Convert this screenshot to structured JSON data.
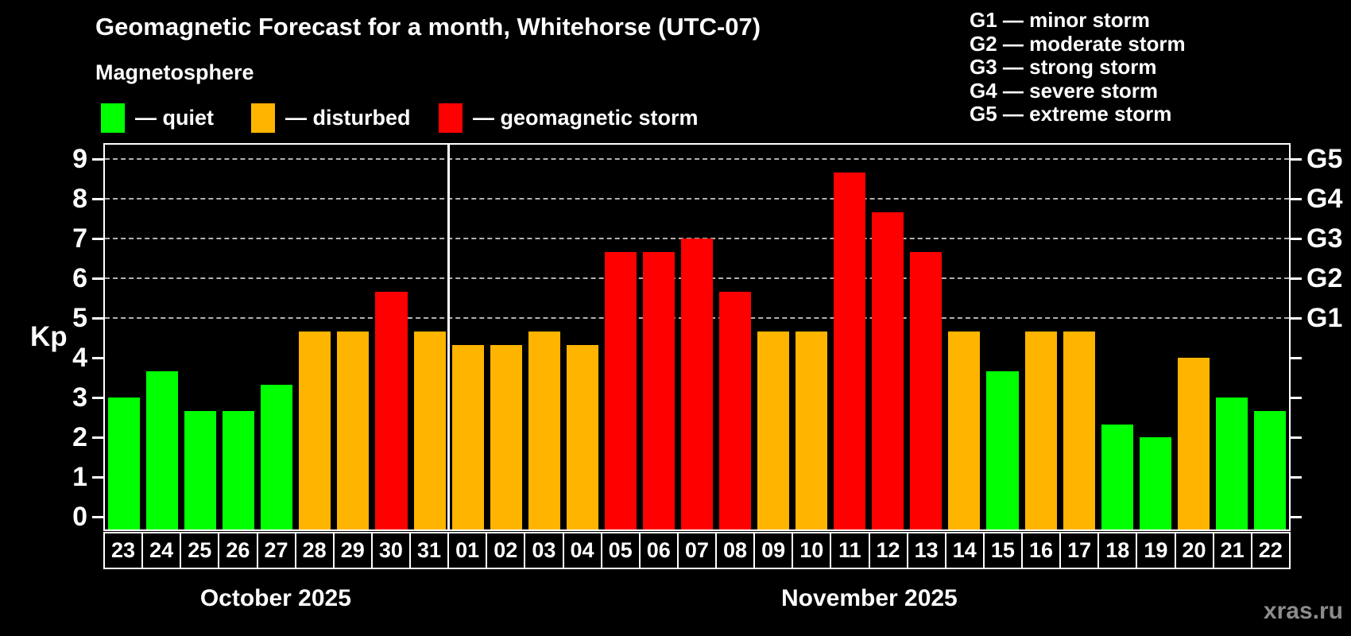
{
  "title": "Geomagnetic Forecast for a month, Whitehorse (UTC-07)",
  "subtitle": "Magnetosphere",
  "watermark": "xras.ru",
  "colors": {
    "quiet": "#00ff00",
    "disturbed": "#ffb400",
    "storm": "#ff0000",
    "background": "#000000",
    "grid": "#b2b2b2"
  },
  "legend": [
    {
      "key": "quiet",
      "label": "— quiet"
    },
    {
      "key": "disturbed",
      "label": "— disturbed"
    },
    {
      "key": "storm",
      "label": "— geomagnetic storm"
    }
  ],
  "g_scale_legend": [
    "G1 — minor storm",
    "G2 — moderate storm",
    "G3 — strong storm",
    "G4 — severe storm",
    "G5 — extreme storm"
  ],
  "chart_data": {
    "type": "bar",
    "ylabel": "Kp",
    "y_ticks": [
      0,
      1,
      2,
      3,
      4,
      5,
      6,
      7,
      8,
      9
    ],
    "ylim": [
      -0.32,
      9.36
    ],
    "grid_levels": [
      5,
      6,
      7,
      8,
      9
    ],
    "grid_style": "dashed",
    "legend_position": "top",
    "right_axis": [
      {
        "kp": 5,
        "label": "G1"
      },
      {
        "kp": 6,
        "label": "G2"
      },
      {
        "kp": 7,
        "label": "G3"
      },
      {
        "kp": 8,
        "label": "G4"
      },
      {
        "kp": 9,
        "label": "G5"
      }
    ],
    "months": [
      {
        "label": "October 2025",
        "days": [
          {
            "day": "23",
            "kp": 3.0,
            "status": "quiet"
          },
          {
            "day": "24",
            "kp": 3.67,
            "status": "quiet"
          },
          {
            "day": "25",
            "kp": 2.67,
            "status": "quiet"
          },
          {
            "day": "26",
            "kp": 2.67,
            "status": "quiet"
          },
          {
            "day": "27",
            "kp": 3.33,
            "status": "quiet"
          },
          {
            "day": "28",
            "kp": 4.67,
            "status": "disturbed"
          },
          {
            "day": "29",
            "kp": 4.67,
            "status": "disturbed"
          },
          {
            "day": "30",
            "kp": 5.67,
            "status": "storm"
          },
          {
            "day": "31",
            "kp": 4.67,
            "status": "disturbed"
          }
        ]
      },
      {
        "label": "November 2025",
        "days": [
          {
            "day": "01",
            "kp": 4.33,
            "status": "disturbed"
          },
          {
            "day": "02",
            "kp": 4.33,
            "status": "disturbed"
          },
          {
            "day": "03",
            "kp": 4.67,
            "status": "disturbed"
          },
          {
            "day": "04",
            "kp": 4.33,
            "status": "disturbed"
          },
          {
            "day": "05",
            "kp": 6.67,
            "status": "storm"
          },
          {
            "day": "06",
            "kp": 6.67,
            "status": "storm"
          },
          {
            "day": "07",
            "kp": 7.0,
            "status": "storm"
          },
          {
            "day": "08",
            "kp": 5.67,
            "status": "storm"
          },
          {
            "day": "09",
            "kp": 4.67,
            "status": "disturbed"
          },
          {
            "day": "10",
            "kp": 4.67,
            "status": "disturbed"
          },
          {
            "day": "11",
            "kp": 8.67,
            "status": "storm"
          },
          {
            "day": "12",
            "kp": 7.67,
            "status": "storm"
          },
          {
            "day": "13",
            "kp": 6.67,
            "status": "storm"
          },
          {
            "day": "14",
            "kp": 4.67,
            "status": "disturbed"
          },
          {
            "day": "15",
            "kp": 3.67,
            "status": "quiet"
          },
          {
            "day": "16",
            "kp": 4.67,
            "status": "disturbed"
          },
          {
            "day": "17",
            "kp": 4.67,
            "status": "disturbed"
          },
          {
            "day": "18",
            "kp": 2.33,
            "status": "quiet"
          },
          {
            "day": "19",
            "kp": 2.0,
            "status": "quiet"
          },
          {
            "day": "20",
            "kp": 4.0,
            "status": "disturbed"
          },
          {
            "day": "21",
            "kp": 3.0,
            "status": "quiet"
          },
          {
            "day": "22",
            "kp": 2.67,
            "status": "quiet"
          }
        ]
      }
    ]
  }
}
